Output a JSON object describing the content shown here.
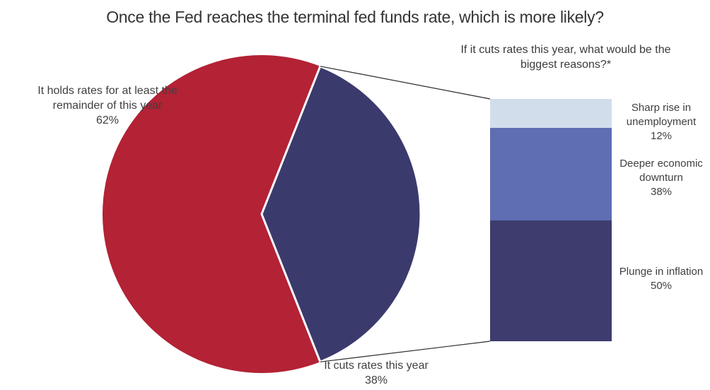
{
  "chart_data": {
    "type": "pie",
    "title": "Once the Fed reaches the terminal fed funds rate, which is more likely?",
    "legend_position": "none",
    "slices": [
      {
        "label": "It holds rates for at least the remainder of this year",
        "value": 62,
        "pct_label": "62%",
        "color": "#B32235"
      },
      {
        "label": "It cuts rates this year",
        "value": 38,
        "pct_label": "38%",
        "color": "#3B3A6D"
      }
    ],
    "breakout": {
      "type": "bar",
      "title": "If it cuts rates this year, what would be the biggest reasons?*",
      "stacked": true,
      "segments": [
        {
          "label": "Sharp rise in unemployment",
          "value": 12,
          "pct_label": "12%",
          "color": "#D2DDEC"
        },
        {
          "label": "Deeper economic downturn",
          "value": 38,
          "pct_label": "38%",
          "color": "#5F6DB2"
        },
        {
          "label": "Plunge in inflation",
          "value": 50,
          "pct_label": "50%",
          "color": "#3E3C6E"
        }
      ]
    }
  }
}
